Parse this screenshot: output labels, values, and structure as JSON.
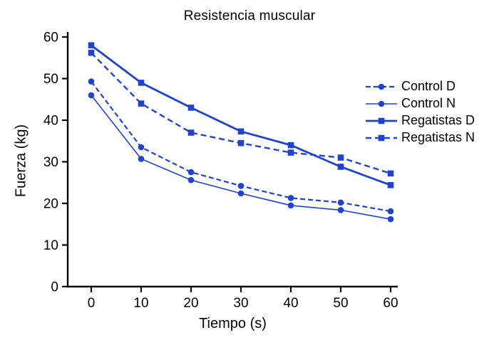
{
  "colors": {
    "line": "#2143cc",
    "axis": "#000000",
    "text": "#000000"
  },
  "chart_data": {
    "type": "line",
    "title": "Resistencia muscular",
    "xlabel": "Tiempo (s)",
    "ylabel": "Fuerza (kg)",
    "x": [
      0,
      10,
      20,
      30,
      40,
      50,
      60
    ],
    "xlim": [
      0,
      60
    ],
    "ylim": [
      0,
      60
    ],
    "xticks": [
      0,
      10,
      20,
      30,
      40,
      50,
      60
    ],
    "yticks": [
      0,
      10,
      20,
      30,
      40,
      50,
      60
    ],
    "grid": false,
    "legend_position": "right",
    "series": [
      {
        "name": "Control D",
        "values": [
          49.3,
          33.5,
          27.5,
          24.2,
          21.3,
          20.2,
          18.1
        ],
        "marker": "circle",
        "dash": "7 4",
        "width": 2.2
      },
      {
        "name": "Control N",
        "values": [
          46.0,
          30.7,
          25.6,
          22.4,
          19.5,
          18.4,
          16.2
        ],
        "marker": "circle",
        "dash": "",
        "width": 1.6
      },
      {
        "name": "Regatistas D",
        "values": [
          58.0,
          49.0,
          43.0,
          37.3,
          34.0,
          28.8,
          24.4
        ],
        "marker": "square",
        "dash": "",
        "width": 2.8
      },
      {
        "name": "Regatistas N",
        "values": [
          56.2,
          44.0,
          37.0,
          34.5,
          32.2,
          31.0,
          27.2
        ],
        "marker": "square",
        "dash": "8 5",
        "width": 2.4
      }
    ]
  }
}
